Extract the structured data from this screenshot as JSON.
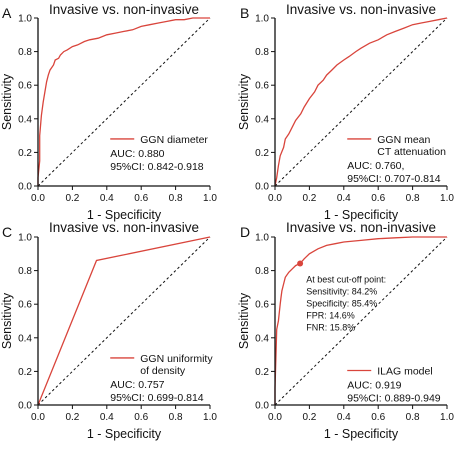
{
  "colors": {
    "roc": "#d9453c",
    "axis": "#111111",
    "ref": "#111111"
  },
  "chart_data": [
    {
      "type": "line",
      "panel_label": "A",
      "title": "Invasive vs. non-invasive",
      "xlabel": "1 - Specificity",
      "ylabel": "Sensitivity",
      "xlim": [
        0,
        1
      ],
      "ylim": [
        0,
        1
      ],
      "ticks": [
        "0.0",
        "0.2",
        "0.4",
        "0.6",
        "0.8",
        "1.0"
      ],
      "legend": [
        "GGN diameter"
      ],
      "stats": [
        "AUC: 0.880",
        "95%CI: 0.842-0.918"
      ],
      "annotation": [],
      "reference_line": true,
      "series": [
        {
          "name": "GGN diameter",
          "points": [
            [
              0,
              0
            ],
            [
              0,
              0.05
            ],
            [
              0.01,
              0.15
            ],
            [
              0.01,
              0.3
            ],
            [
              0.02,
              0.42
            ],
            [
              0.03,
              0.5
            ],
            [
              0.04,
              0.56
            ],
            [
              0.05,
              0.62
            ],
            [
              0.06,
              0.66
            ],
            [
              0.07,
              0.69
            ],
            [
              0.09,
              0.72
            ],
            [
              0.1,
              0.75
            ],
            [
              0.12,
              0.76
            ],
            [
              0.13,
              0.78
            ],
            [
              0.15,
              0.8
            ],
            [
              0.17,
              0.81
            ],
            [
              0.2,
              0.83
            ],
            [
              0.23,
              0.84
            ],
            [
              0.27,
              0.86
            ],
            [
              0.3,
              0.87
            ],
            [
              0.35,
              0.88
            ],
            [
              0.4,
              0.9
            ],
            [
              0.45,
              0.91
            ],
            [
              0.5,
              0.92
            ],
            [
              0.55,
              0.93
            ],
            [
              0.6,
              0.95
            ],
            [
              0.65,
              0.96
            ],
            [
              0.7,
              0.97
            ],
            [
              0.75,
              0.98
            ],
            [
              0.8,
              0.99
            ],
            [
              0.85,
              0.99
            ],
            [
              0.9,
              1
            ],
            [
              1,
              1
            ]
          ]
        }
      ]
    },
    {
      "type": "line",
      "panel_label": "B",
      "title": "Invasive vs. non-invasive",
      "xlabel": "1 - Specificity",
      "ylabel": "Sensitivity",
      "xlim": [
        0,
        1
      ],
      "ylim": [
        0,
        1
      ],
      "ticks": [
        "0.0",
        "0.2",
        "0.4",
        "0.6",
        "0.8",
        "1.0"
      ],
      "legend": [
        "GGN mean",
        "CT attenuation"
      ],
      "stats": [
        "AUC: 0.760,",
        "95%CI: 0.707-0.814"
      ],
      "annotation": [],
      "reference_line": true,
      "series": [
        {
          "name": "GGN mean CT attenuation",
          "points": [
            [
              0,
              0
            ],
            [
              0.01,
              0.05
            ],
            [
              0.02,
              0.12
            ],
            [
              0.03,
              0.18
            ],
            [
              0.05,
              0.23
            ],
            [
              0.06,
              0.28
            ],
            [
              0.08,
              0.31
            ],
            [
              0.1,
              0.35
            ],
            [
              0.12,
              0.39
            ],
            [
              0.15,
              0.43
            ],
            [
              0.17,
              0.47
            ],
            [
              0.2,
              0.52
            ],
            [
              0.23,
              0.56
            ],
            [
              0.25,
              0.6
            ],
            [
              0.28,
              0.63
            ],
            [
              0.3,
              0.66
            ],
            [
              0.33,
              0.69
            ],
            [
              0.36,
              0.72
            ],
            [
              0.4,
              0.75
            ],
            [
              0.43,
              0.77
            ],
            [
              0.47,
              0.8
            ],
            [
              0.5,
              0.82
            ],
            [
              0.55,
              0.85
            ],
            [
              0.6,
              0.87
            ],
            [
              0.65,
              0.9
            ],
            [
              0.7,
              0.92
            ],
            [
              0.75,
              0.94
            ],
            [
              0.8,
              0.96
            ],
            [
              0.85,
              0.97
            ],
            [
              0.9,
              0.98
            ],
            [
              0.95,
              0.99
            ],
            [
              1,
              1
            ]
          ]
        }
      ]
    },
    {
      "type": "line",
      "panel_label": "C",
      "title": "Invasive vs. non-invasive",
      "xlabel": "1 - Specificity",
      "ylabel": "Sensitivity",
      "xlim": [
        0,
        1
      ],
      "ylim": [
        0,
        1
      ],
      "ticks": [
        "0.0",
        "0.2",
        "0.4",
        "0.6",
        "0.8",
        "1.0"
      ],
      "legend": [
        "GGN uniformity",
        "of density"
      ],
      "stats": [
        "AUC: 0.757",
        "95%CI: 0.699-0.814"
      ],
      "annotation": [],
      "reference_line": true,
      "series": [
        {
          "name": "GGN uniformity of density",
          "points": [
            [
              0,
              0
            ],
            [
              0.34,
              0.86
            ],
            [
              1,
              1
            ]
          ]
        }
      ]
    },
    {
      "type": "line",
      "panel_label": "D",
      "title": "Invasive vs. non-invasive",
      "xlabel": "1 - Specificity",
      "ylabel": "Sensitivity",
      "xlim": [
        0,
        1
      ],
      "ylim": [
        0,
        1
      ],
      "ticks": [
        "0.0",
        "0.2",
        "0.4",
        "0.6",
        "0.8",
        "1.0"
      ],
      "legend": [
        "ILAG model"
      ],
      "stats": [
        "AUC: 0.919",
        "95%CI: 0.889-0.949"
      ],
      "annotation": [
        "At best cut-off point:",
        "Sensitivity: 84.2%",
        "Specificity: 85.4%",
        "FPR: 14.6%",
        "FNR: 15.8%"
      ],
      "cutoff_point": [
        0.146,
        0.842
      ],
      "reference_line": true,
      "series": [
        {
          "name": "ILAG model",
          "points": [
            [
              0,
              0
            ],
            [
              0,
              0.1
            ],
            [
              0.005,
              0.28
            ],
            [
              0.01,
              0.45
            ],
            [
              0.02,
              0.5
            ],
            [
              0.025,
              0.55
            ],
            [
              0.03,
              0.6
            ],
            [
              0.035,
              0.64
            ],
            [
              0.04,
              0.68
            ],
            [
              0.05,
              0.72
            ],
            [
              0.06,
              0.76
            ],
            [
              0.08,
              0.79
            ],
            [
              0.1,
              0.81
            ],
            [
              0.12,
              0.83
            ],
            [
              0.146,
              0.842
            ],
            [
              0.17,
              0.87
            ],
            [
              0.2,
              0.9
            ],
            [
              0.25,
              0.93
            ],
            [
              0.3,
              0.95
            ],
            [
              0.35,
              0.96
            ],
            [
              0.4,
              0.97
            ],
            [
              0.5,
              0.98
            ],
            [
              0.6,
              0.99
            ],
            [
              0.7,
              0.995
            ],
            [
              0.8,
              1
            ],
            [
              1,
              1
            ]
          ]
        }
      ]
    }
  ]
}
